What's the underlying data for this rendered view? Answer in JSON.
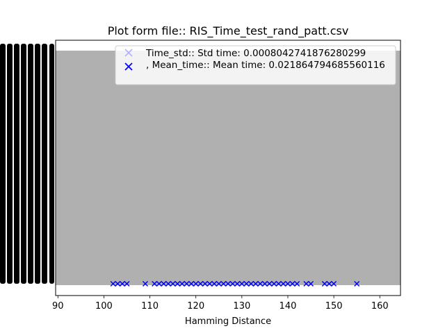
{
  "chart_data": {
    "type": "scatter",
    "title": "Plot form file:: RIS_Time_test_rand_patt.csv",
    "xlabel": "Hamming Distance",
    "ylabel": "",
    "xlim": [
      89.5,
      164.5
    ],
    "xticks": [
      90,
      100,
      110,
      120,
      130,
      140,
      150,
      160
    ],
    "grid": false,
    "legend_position": "upper-right",
    "legend": [
      {
        "label": "Time_std:: Std time: 0.0008042741876280299",
        "marker": "x",
        "color": "#b0b0ff"
      },
      {
        "label": ", Mean_time:: Mean time: 0.021864794685560116",
        "marker": "x",
        "color": "#0000ff"
      }
    ],
    "series": [
      {
        "name": "Time_std:: Std time: 0.0008042741876280299",
        "marker": "x",
        "color": "#b0b0b0",
        "x": [
          90,
          92,
          95,
          98,
          100,
          102,
          104,
          106,
          108,
          110,
          112,
          114,
          116,
          118,
          120,
          122,
          124,
          126,
          128,
          130,
          132,
          134,
          136,
          138,
          140,
          142,
          144,
          146,
          148,
          150,
          152,
          154,
          156,
          158,
          160,
          162,
          164
        ]
      },
      {
        "name": ", Mean_time:: Mean time: 0.021864794685560116",
        "marker": "x",
        "color": "#0000ff",
        "x": [
          102,
          103,
          104,
          105,
          109,
          111,
          112,
          113,
          114,
          115,
          116,
          117,
          118,
          119,
          120,
          121,
          122,
          123,
          124,
          125,
          126,
          127,
          128,
          129,
          130,
          131,
          132,
          133,
          134,
          135,
          136,
          137,
          138,
          139,
          140,
          141,
          142,
          144,
          145,
          148,
          149,
          150,
          155
        ]
      }
    ]
  }
}
